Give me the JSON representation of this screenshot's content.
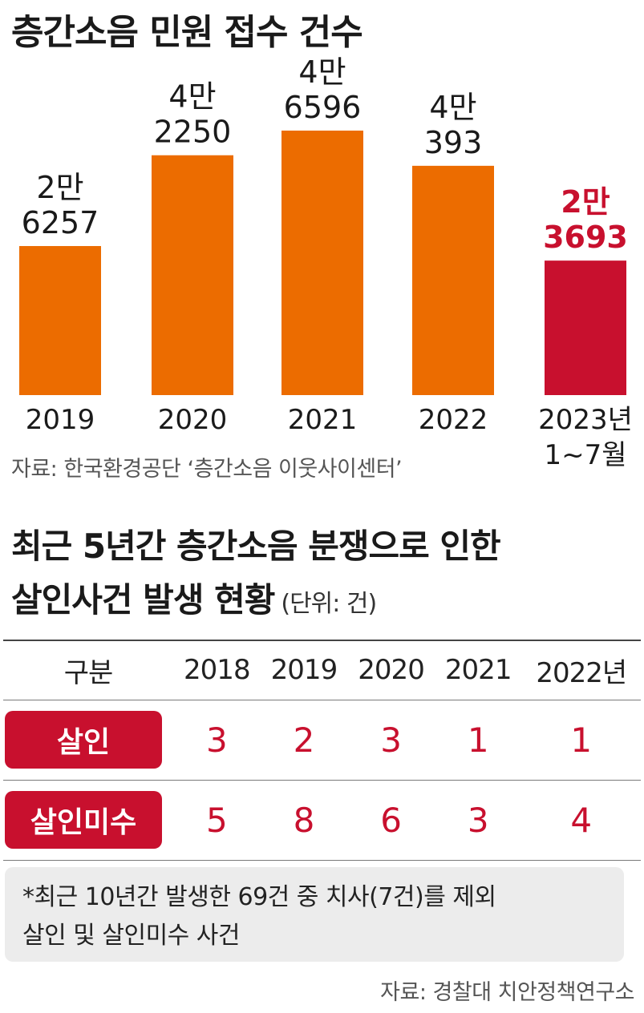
{
  "chart_data": {
    "type": "bar",
    "title": "층간소음 민원 접수 건수",
    "categories": [
      "2019",
      "2020",
      "2021",
      "2022",
      "2023년 1~7월"
    ],
    "category_labels": [
      [
        "2019"
      ],
      [
        "2020"
      ],
      [
        "2021"
      ],
      [
        "2022"
      ],
      [
        "2023년",
        "1~7월"
      ]
    ],
    "values": [
      26257,
      42250,
      46596,
      40393,
      23693
    ],
    "value_labels": [
      [
        "2만",
        "6257"
      ],
      [
        "4만",
        "2250"
      ],
      [
        "4만",
        "6596"
      ],
      [
        "4만",
        "393"
      ],
      [
        "2만",
        "3693"
      ]
    ],
    "colors": [
      "#ec6c00",
      "#ec6c00",
      "#ec6c00",
      "#ec6c00",
      "#c8102e"
    ],
    "label_colors": [
      "#1a1a1a",
      "#1a1a1a",
      "#1a1a1a",
      "#1a1a1a",
      "#c8102e"
    ],
    "ylim": [
      0,
      48000
    ],
    "grid": false,
    "legend": "none",
    "source": "자료: 한국환경공단 ‘층간소음 이웃사이센터’"
  },
  "table": {
    "title_line1": "최근 5년간 층간소음 분쟁으로 인한",
    "title_line2": "살인사건 발생 현황",
    "unit": "(단위: 건)",
    "header": [
      "구분",
      "2018",
      "2019",
      "2020",
      "2021",
      "2022년"
    ],
    "rows": [
      {
        "label": "살인",
        "values": [
          "3",
          "2",
          "3",
          "1",
          "1"
        ]
      },
      {
        "label": "살인미수",
        "values": [
          "5",
          "8",
          "6",
          "3",
          "4"
        ]
      }
    ],
    "note_line1": "*최근 10년간 발생한 69건 중 치사(7건)를 제외",
    "note_line2": "살인 및 살인미수 사건",
    "source": "자료: 경찰대 치안정책연구소"
  }
}
